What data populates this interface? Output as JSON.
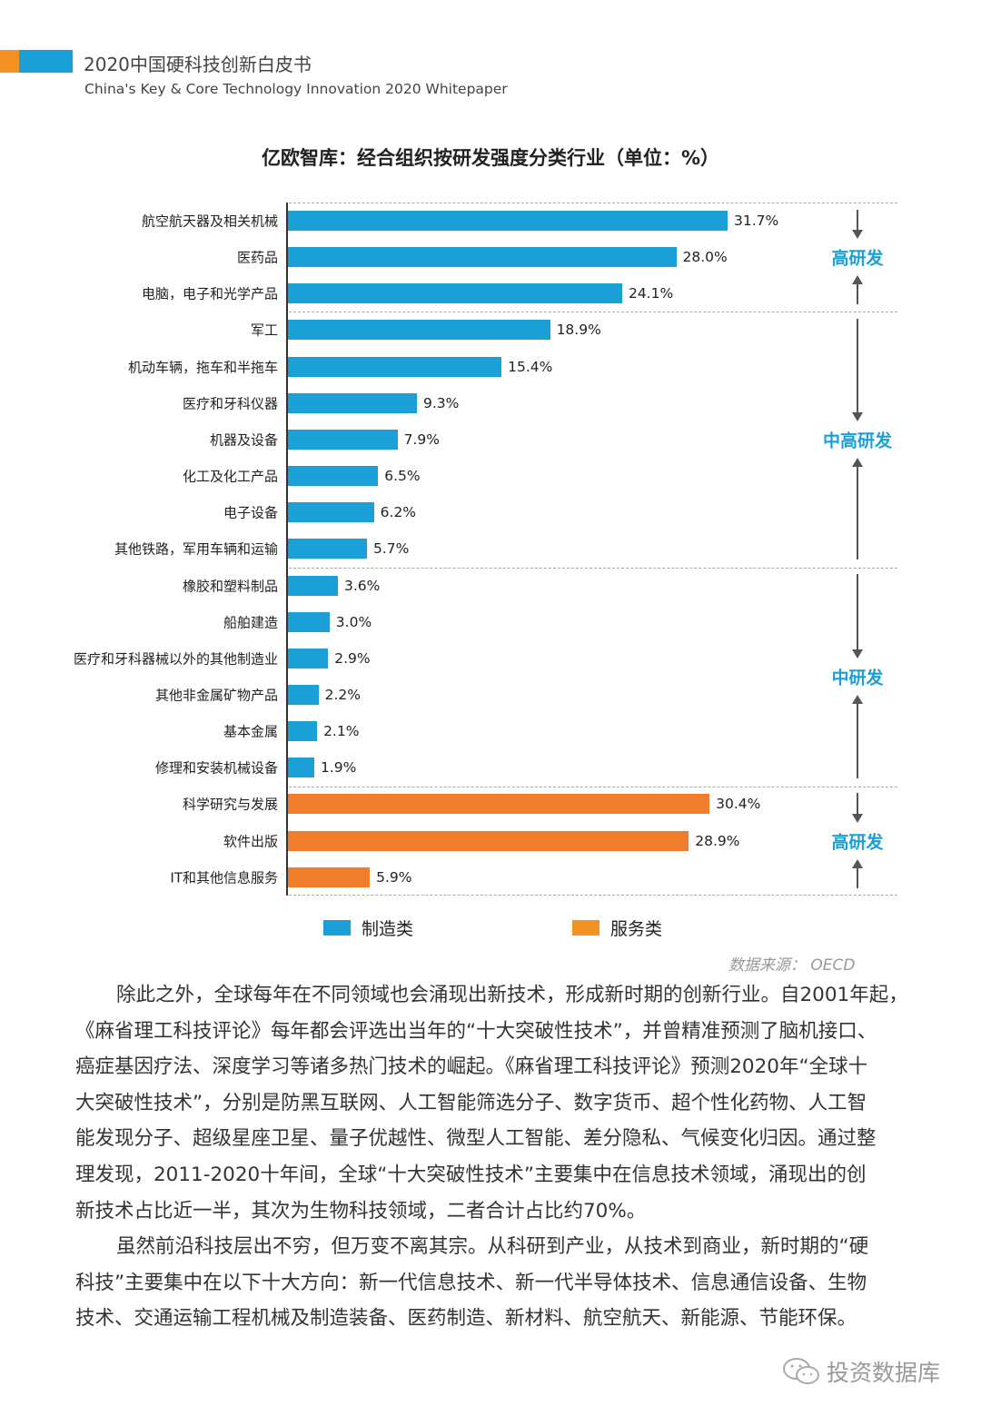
{
  "header": {
    "title": "2020中国硬科技创新白皮书",
    "subtitle": "China's Key & Core Technology Innovation 2020 Whitepaper"
  },
  "colors": {
    "manufacturing": "#1a9fd6",
    "services": "#ef7d2c",
    "band_label": "#1a9fd6"
  },
  "chart_data": {
    "type": "bar",
    "orientation": "horizontal",
    "title": "亿欧智库：经合组织按研发强度分类行业（单位：%）",
    "categories": [
      "航空航天器及相关机械",
      "医药品",
      "电脑，电子和光学产品",
      "军工",
      "机动车辆，拖车和半拖车",
      "医疗和牙科仪器",
      "机器及设备",
      "化工及化工产品",
      "电子设备",
      "其他铁路，军用车辆和运输",
      "橡胶和塑料制品",
      "船舶建造",
      "医疗和牙科器械以外的其他制造业",
      "其他非金属矿物产品",
      "基本金属",
      "修理和安装机械设备",
      "科学研究与发展",
      "软件出版",
      "IT和其他信息服务"
    ],
    "values": [
      31.7,
      28.0,
      24.1,
      18.9,
      15.4,
      9.3,
      7.9,
      6.5,
      6.2,
      5.7,
      3.6,
      3.0,
      2.9,
      2.2,
      2.1,
      1.9,
      30.4,
      28.9,
      5.9
    ],
    "value_labels": [
      "31.7%",
      "28.0%",
      "24.1%",
      "18.9%",
      "15.4%",
      "9.3%",
      "7.9%",
      "6.5%",
      "6.2%",
      "5.7%",
      "3.6%",
      "3.0%",
      "2.9%",
      "2.2%",
      "2.1%",
      "1.9%",
      "30.4%",
      "28.9%",
      "5.9%"
    ],
    "series_index": [
      0,
      0,
      0,
      0,
      0,
      0,
      0,
      0,
      0,
      0,
      0,
      0,
      0,
      0,
      0,
      0,
      1,
      1,
      1
    ],
    "legend": [
      {
        "name": "制造类"
      },
      {
        "name": "服务类"
      }
    ],
    "legend_position": "bottom",
    "bands": [
      {
        "label": "高研发",
        "from": 0,
        "to": 2
      },
      {
        "label": "中高研发",
        "from": 3,
        "to": 9
      },
      {
        "label": "中研发",
        "from": 10,
        "to": 15
      },
      {
        "label": "高研发",
        "from": 16,
        "to": 18
      }
    ],
    "xlim": [
      0,
      31.7
    ],
    "source": "数据来源： OECD"
  },
  "body": {
    "paragraph1": [
      "除此之外，全球每年在不同领域也会涌现出新技术，形成新时期的创新行业。自2001年起，",
      "《麻省理工科技评论》每年都会评选出当年的“十大突破性技术”，并曾精准预测了脑机接口、",
      "癌症基因疗法、深度学习等诸多热门技术的崛起。《麻省理工科技评论》预测2020年“全球十",
      "大突破性技术”，分别是防黑互联网、人工智能筛选分子、数字货币、超个性化药物、人工智",
      "能发现分子、超级星座卫星、量子优越性、微型人工智能、差分隐私、气候变化归因。通过整",
      "理发现，2011-2020十年间，全球“十大突破性技术”主要集中在信息技术领域，涌现出的创",
      "新技术占比近一半，其次为生物科技领域，二者合计占比约70%。"
    ],
    "paragraph2": [
      "虽然前沿科技层出不穷，但万变不离其宗。从科研到产业，从技术到商业，新时期的“硬",
      "科技”主要集中在以下十大方向：新一代信息技术、新一代半导体技术、信息通信设备、生物",
      "技术、交通运输工程机械及制造装备、医药制造、新材料、航空航天、新能源、节能环保。"
    ]
  },
  "watermark": {
    "text": "投资数据库",
    "icon": "wechat-icon"
  }
}
